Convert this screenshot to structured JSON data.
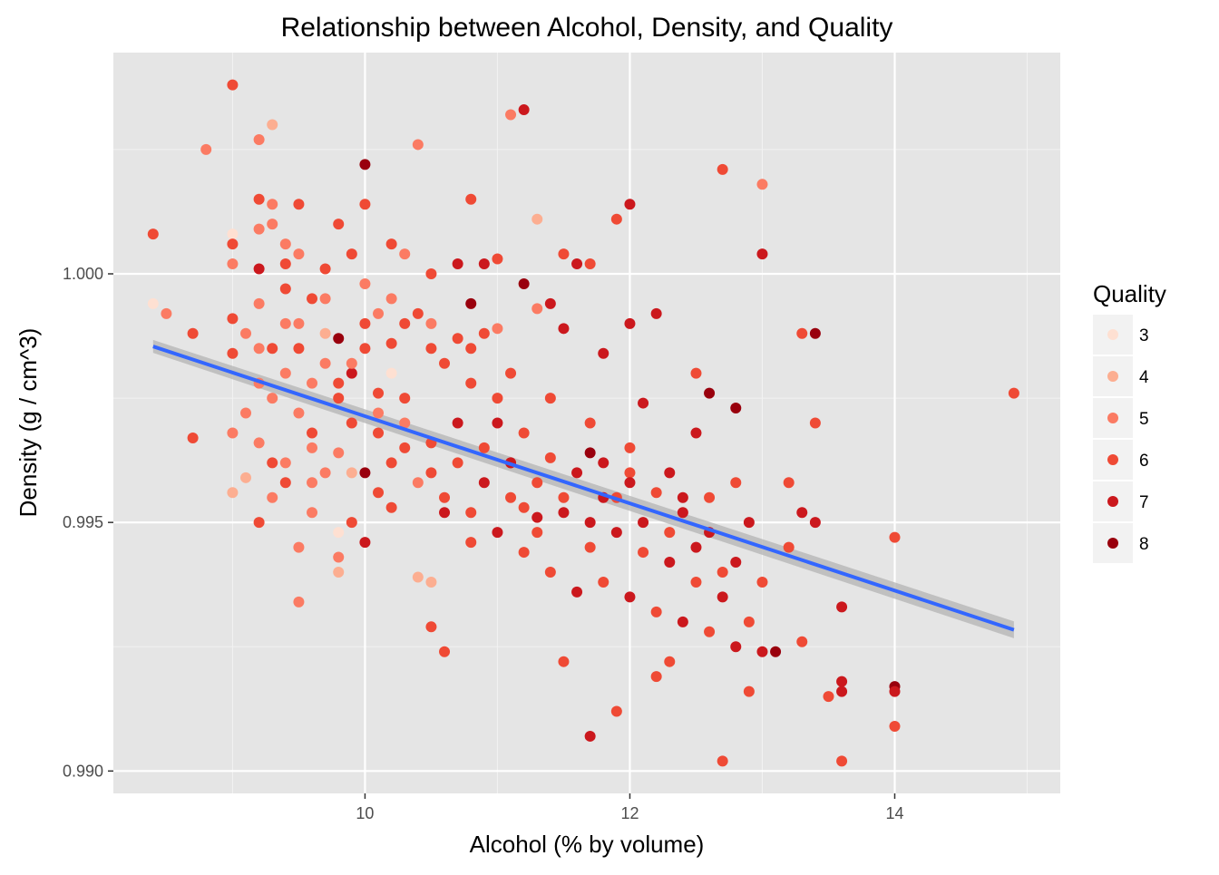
{
  "chart_data": {
    "type": "scatter",
    "title": "Relationship between Alcohol, Density, and Quality",
    "xlabel": "Alcohol (% by volume)",
    "ylabel": "Density (g / cm^3)",
    "xlim": [
      8.1,
      15.25
    ],
    "ylim": [
      0.98955,
      1.00445
    ],
    "x_ticks": [
      10,
      12,
      14
    ],
    "x_tick_labels": [
      "10",
      "12",
      "14"
    ],
    "y_ticks": [
      0.99,
      0.995,
      1.0
    ],
    "y_tick_labels": [
      "0.990",
      "0.995",
      "1.000"
    ],
    "grid": true,
    "legend": {
      "title": "Quality",
      "placement": "right",
      "entries": [
        {
          "label": "3",
          "color": "#fee0d2"
        },
        {
          "label": "4",
          "color": "#fcae91"
        },
        {
          "label": "5",
          "color": "#fb7b63"
        },
        {
          "label": "6",
          "color": "#ef4a35"
        },
        {
          "label": "7",
          "color": "#cb181d"
        },
        {
          "label": "8",
          "color": "#99000d"
        }
      ]
    },
    "trend_line": {
      "color": "#3366ff",
      "band_color": "#b3b3b3",
      "points": [
        [
          8.4,
          0.99854
        ],
        [
          14.9,
          0.99284
        ]
      ],
      "band_upper": [
        [
          8.4,
          0.99867
        ],
        [
          14.9,
          0.99301
        ]
      ],
      "band_lower": [
        [
          8.4,
          0.99841
        ],
        [
          14.9,
          0.99267
        ]
      ]
    },
    "points": [
      [
        8.4,
        1.0008,
        6
      ],
      [
        8.4,
        0.9994,
        3
      ],
      [
        8.5,
        0.9992,
        5
      ],
      [
        8.7,
        0.9988,
        6
      ],
      [
        8.7,
        0.9967,
        6
      ],
      [
        8.8,
        1.0025,
        5
      ],
      [
        9.0,
        1.0038,
        6
      ],
      [
        9.0,
        1.0008,
        3
      ],
      [
        9.0,
        1.0006,
        6
      ],
      [
        9.0,
        1.0002,
        5
      ],
      [
        9.0,
        0.9991,
        6
      ],
      [
        9.0,
        0.9984,
        6
      ],
      [
        9.0,
        0.9956,
        4
      ],
      [
        9.1,
        0.9959,
        4
      ],
      [
        9.1,
        0.9988,
        5
      ],
      [
        9.2,
        1.0027,
        5
      ],
      [
        9.2,
        1.0015,
        6
      ],
      [
        9.2,
        1.0009,
        5
      ],
      [
        9.2,
        1.0001,
        7
      ],
      [
        9.2,
        0.9994,
        5
      ],
      [
        9.2,
        0.995,
        6
      ],
      [
        9.3,
        1.003,
        4
      ],
      [
        9.3,
        1.0014,
        5
      ],
      [
        9.3,
        1.001,
        5
      ],
      [
        9.3,
        0.9985,
        6
      ],
      [
        9.4,
        1.0006,
        5
      ],
      [
        9.4,
        1.0002,
        6
      ],
      [
        9.4,
        0.9997,
        6
      ],
      [
        9.4,
        0.999,
        5
      ],
      [
        9.5,
        1.0014,
        6
      ],
      [
        9.5,
        1.0004,
        5
      ],
      [
        9.5,
        0.9945,
        5
      ],
      [
        9.5,
        0.9934,
        5
      ],
      [
        9.6,
        0.9995,
        6
      ],
      [
        9.6,
        0.9965,
        5
      ],
      [
        9.7,
        1.0001,
        6
      ],
      [
        9.7,
        0.9988,
        4
      ],
      [
        9.7,
        0.996,
        5
      ],
      [
        9.8,
        1.001,
        6
      ],
      [
        9.8,
        0.9987,
        8
      ],
      [
        9.8,
        0.9975,
        6
      ],
      [
        9.8,
        0.9943,
        5
      ],
      [
        9.8,
        0.994,
        4
      ],
      [
        9.8,
        0.9948,
        3
      ],
      [
        9.9,
        1.0004,
        6
      ],
      [
        9.9,
        0.998,
        7
      ],
      [
        9.9,
        0.996,
        4
      ],
      [
        10.0,
        1.0022,
        8
      ],
      [
        10.0,
        1.0014,
        6
      ],
      [
        10.0,
        0.9998,
        5
      ],
      [
        10.0,
        0.9985,
        6
      ],
      [
        10.0,
        0.996,
        8
      ],
      [
        10.0,
        0.9946,
        7
      ],
      [
        10.1,
        0.9992,
        5
      ],
      [
        10.1,
        0.9976,
        6
      ],
      [
        10.1,
        0.9956,
        6
      ],
      [
        10.2,
        1.0006,
        6
      ],
      [
        10.2,
        0.998,
        3
      ],
      [
        10.2,
        0.9962,
        6
      ],
      [
        10.3,
        1.0004,
        5
      ],
      [
        10.3,
        0.999,
        6
      ],
      [
        10.3,
        0.997,
        5
      ],
      [
        10.4,
        1.0026,
        5
      ],
      [
        10.4,
        0.9939,
        4
      ],
      [
        10.5,
        1.0,
        6
      ],
      [
        10.5,
        0.9985,
        6
      ],
      [
        10.5,
        0.9929,
        6
      ],
      [
        10.5,
        0.9938,
        4
      ],
      [
        10.6,
        0.9924,
        6
      ],
      [
        10.6,
        0.9952,
        7
      ],
      [
        10.7,
        1.0002,
        7
      ],
      [
        10.7,
        0.9987,
        6
      ],
      [
        10.8,
        1.0015,
        6
      ],
      [
        10.8,
        0.9994,
        8
      ],
      [
        10.8,
        0.9946,
        6
      ],
      [
        10.9,
        1.0002,
        7
      ],
      [
        10.9,
        0.9988,
        6
      ],
      [
        11.0,
        1.0003,
        6
      ],
      [
        11.0,
        0.9989,
        5
      ],
      [
        11.0,
        0.997,
        7
      ],
      [
        11.1,
        1.0032,
        5
      ],
      [
        11.1,
        0.9962,
        6
      ],
      [
        11.2,
        1.0033,
        7
      ],
      [
        11.2,
        0.9998,
        8
      ],
      [
        11.2,
        0.9953,
        6
      ],
      [
        11.3,
        1.0011,
        4
      ],
      [
        11.3,
        0.9993,
        5
      ],
      [
        11.3,
        0.9951,
        7
      ],
      [
        11.4,
        0.9994,
        7
      ],
      [
        11.5,
        1.0004,
        6
      ],
      [
        11.5,
        0.9989,
        7
      ],
      [
        11.5,
        0.9922,
        6
      ],
      [
        11.6,
        1.0002,
        7
      ],
      [
        11.7,
        1.0002,
        6
      ],
      [
        11.7,
        0.9964,
        8
      ],
      [
        11.7,
        0.9907,
        7
      ],
      [
        11.8,
        0.9984,
        7
      ],
      [
        11.8,
        0.9955,
        7
      ],
      [
        11.9,
        1.0011,
        6
      ],
      [
        11.9,
        0.9912,
        6
      ],
      [
        12.0,
        1.0014,
        7
      ],
      [
        12.0,
        0.999,
        7
      ],
      [
        12.0,
        0.996,
        6
      ],
      [
        12.1,
        0.9974,
        7
      ],
      [
        12.2,
        0.9992,
        7
      ],
      [
        12.2,
        0.9919,
        6
      ],
      [
        12.3,
        0.9922,
        6
      ],
      [
        12.4,
        0.9955,
        7
      ],
      [
        12.5,
        0.998,
        6
      ],
      [
        12.5,
        0.9968,
        7
      ],
      [
        12.6,
        0.9976,
        8
      ],
      [
        12.7,
        1.0021,
        6
      ],
      [
        12.7,
        0.9902,
        6
      ],
      [
        12.8,
        0.9973,
        8
      ],
      [
        12.8,
        0.9958,
        6
      ],
      [
        12.9,
        0.9916,
        6
      ],
      [
        13.0,
        1.0018,
        5
      ],
      [
        13.0,
        1.0004,
        7
      ],
      [
        13.0,
        0.9924,
        7
      ],
      [
        13.1,
        0.9924,
        8
      ],
      [
        13.2,
        0.9958,
        6
      ],
      [
        13.3,
        0.9988,
        6
      ],
      [
        13.3,
        0.9952,
        7
      ],
      [
        13.3,
        0.9926,
        6
      ],
      [
        13.4,
        0.9988,
        8
      ],
      [
        13.4,
        0.997,
        6
      ],
      [
        13.4,
        0.995,
        7
      ],
      [
        13.5,
        0.9915,
        6
      ],
      [
        13.6,
        0.9918,
        7
      ],
      [
        13.6,
        0.9916,
        7
      ],
      [
        13.6,
        0.9902,
        6
      ],
      [
        13.6,
        0.9933,
        7
      ],
      [
        14.0,
        0.9947,
        6
      ],
      [
        14.0,
        0.9917,
        8
      ],
      [
        14.0,
        0.9909,
        6
      ],
      [
        14.0,
        0.9916,
        7
      ],
      [
        14.9,
        0.9976,
        6
      ],
      [
        9.2,
        0.9978,
        5
      ],
      [
        9.3,
        0.9975,
        5
      ],
      [
        9.4,
        0.998,
        5
      ],
      [
        9.5,
        0.9972,
        5
      ],
      [
        9.6,
        0.9978,
        5
      ],
      [
        9.2,
        0.9966,
        5
      ],
      [
        9.4,
        0.9962,
        5
      ],
      [
        9.6,
        0.9968,
        6
      ],
      [
        9.8,
        0.9964,
        5
      ],
      [
        9.5,
        0.9985,
        6
      ],
      [
        9.7,
        0.9982,
        5
      ],
      [
        9.9,
        0.997,
        6
      ],
      [
        10.1,
        0.9968,
        6
      ],
      [
        10.3,
        0.9975,
        6
      ],
      [
        10.5,
        0.9966,
        6
      ],
      [
        10.7,
        0.9962,
        6
      ],
      [
        10.9,
        0.9958,
        7
      ],
      [
        11.1,
        0.9955,
        6
      ],
      [
        11.3,
        0.9948,
        6
      ],
      [
        11.5,
        0.9952,
        7
      ],
      [
        11.7,
        0.9945,
        6
      ],
      [
        11.9,
        0.9948,
        7
      ],
      [
        12.1,
        0.9944,
        6
      ],
      [
        12.3,
        0.9942,
        7
      ],
      [
        12.5,
        0.9938,
        6
      ],
      [
        12.7,
        0.9935,
        7
      ],
      [
        12.9,
        0.993,
        6
      ],
      [
        9.3,
        0.9955,
        5
      ],
      [
        9.6,
        0.9952,
        5
      ],
      [
        9.9,
        0.995,
        6
      ],
      [
        10.2,
        0.9953,
        6
      ],
      [
        10.4,
        0.9958,
        5
      ],
      [
        10.6,
        0.9955,
        6
      ],
      [
        10.8,
        0.9952,
        6
      ],
      [
        11.0,
        0.9948,
        7
      ],
      [
        11.2,
        0.9944,
        6
      ],
      [
        11.4,
        0.994,
        6
      ],
      [
        11.6,
        0.9936,
        7
      ],
      [
        11.8,
        0.9938,
        6
      ],
      [
        12.0,
        0.9935,
        7
      ],
      [
        12.2,
        0.9932,
        6
      ],
      [
        12.4,
        0.993,
        7
      ],
      [
        12.6,
        0.9928,
        6
      ],
      [
        12.8,
        0.9925,
        7
      ],
      [
        9.1,
        0.9972,
        5
      ],
      [
        9.4,
        0.9958,
        6
      ],
      [
        9.7,
        0.9995,
        5
      ],
      [
        10.0,
        0.999,
        6
      ],
      [
        10.2,
        0.9995,
        5
      ],
      [
        10.4,
        0.9992,
        6
      ],
      [
        10.6,
        0.9982,
        6
      ],
      [
        10.8,
        0.9978,
        6
      ],
      [
        11.0,
        0.9975,
        6
      ],
      [
        11.2,
        0.9968,
        6
      ],
      [
        11.4,
        0.9963,
        6
      ],
      [
        11.6,
        0.996,
        7
      ],
      [
        11.8,
        0.9962,
        7
      ],
      [
        12.0,
        0.9958,
        7
      ],
      [
        12.2,
        0.9956,
        6
      ],
      [
        12.4,
        0.9952,
        7
      ],
      [
        12.6,
        0.9948,
        7
      ],
      [
        12.8,
        0.9942,
        7
      ],
      [
        13.0,
        0.9938,
        6
      ],
      [
        9.2,
        0.9985,
        5
      ],
      [
        9.5,
        0.999,
        5
      ],
      [
        9.8,
        0.9978,
        6
      ],
      [
        10.1,
        0.9972,
        5
      ],
      [
        10.3,
        0.9965,
        6
      ],
      [
        10.5,
        0.996,
        6
      ],
      [
        10.7,
        0.997,
        7
      ],
      [
        10.9,
        0.9965,
        6
      ],
      [
        11.1,
        0.9962,
        7
      ],
      [
        11.3,
        0.9958,
        6
      ],
      [
        11.5,
        0.9955,
        6
      ],
      [
        11.7,
        0.995,
        7
      ],
      [
        11.9,
        0.9955,
        6
      ],
      [
        12.1,
        0.995,
        7
      ],
      [
        12.3,
        0.9948,
        6
      ],
      [
        12.5,
        0.9945,
        7
      ],
      [
        12.7,
        0.994,
        6
      ],
      [
        9.0,
        0.9968,
        5
      ],
      [
        9.3,
        0.9962,
        6
      ],
      [
        9.6,
        0.9958,
        5
      ],
      [
        9.9,
        0.9982,
        5
      ],
      [
        10.2,
        0.9986,
        6
      ],
      [
        10.5,
        0.999,
        5
      ],
      [
        10.8,
        0.9985,
        6
      ],
      [
        11.1,
        0.998,
        6
      ],
      [
        11.4,
        0.9975,
        6
      ],
      [
        11.7,
        0.997,
        6
      ],
      [
        12.0,
        0.9965,
        6
      ],
      [
        12.3,
        0.996,
        7
      ],
      [
        12.6,
        0.9955,
        6
      ],
      [
        12.9,
        0.995,
        7
      ],
      [
        13.2,
        0.9945,
        6
      ]
    ]
  }
}
